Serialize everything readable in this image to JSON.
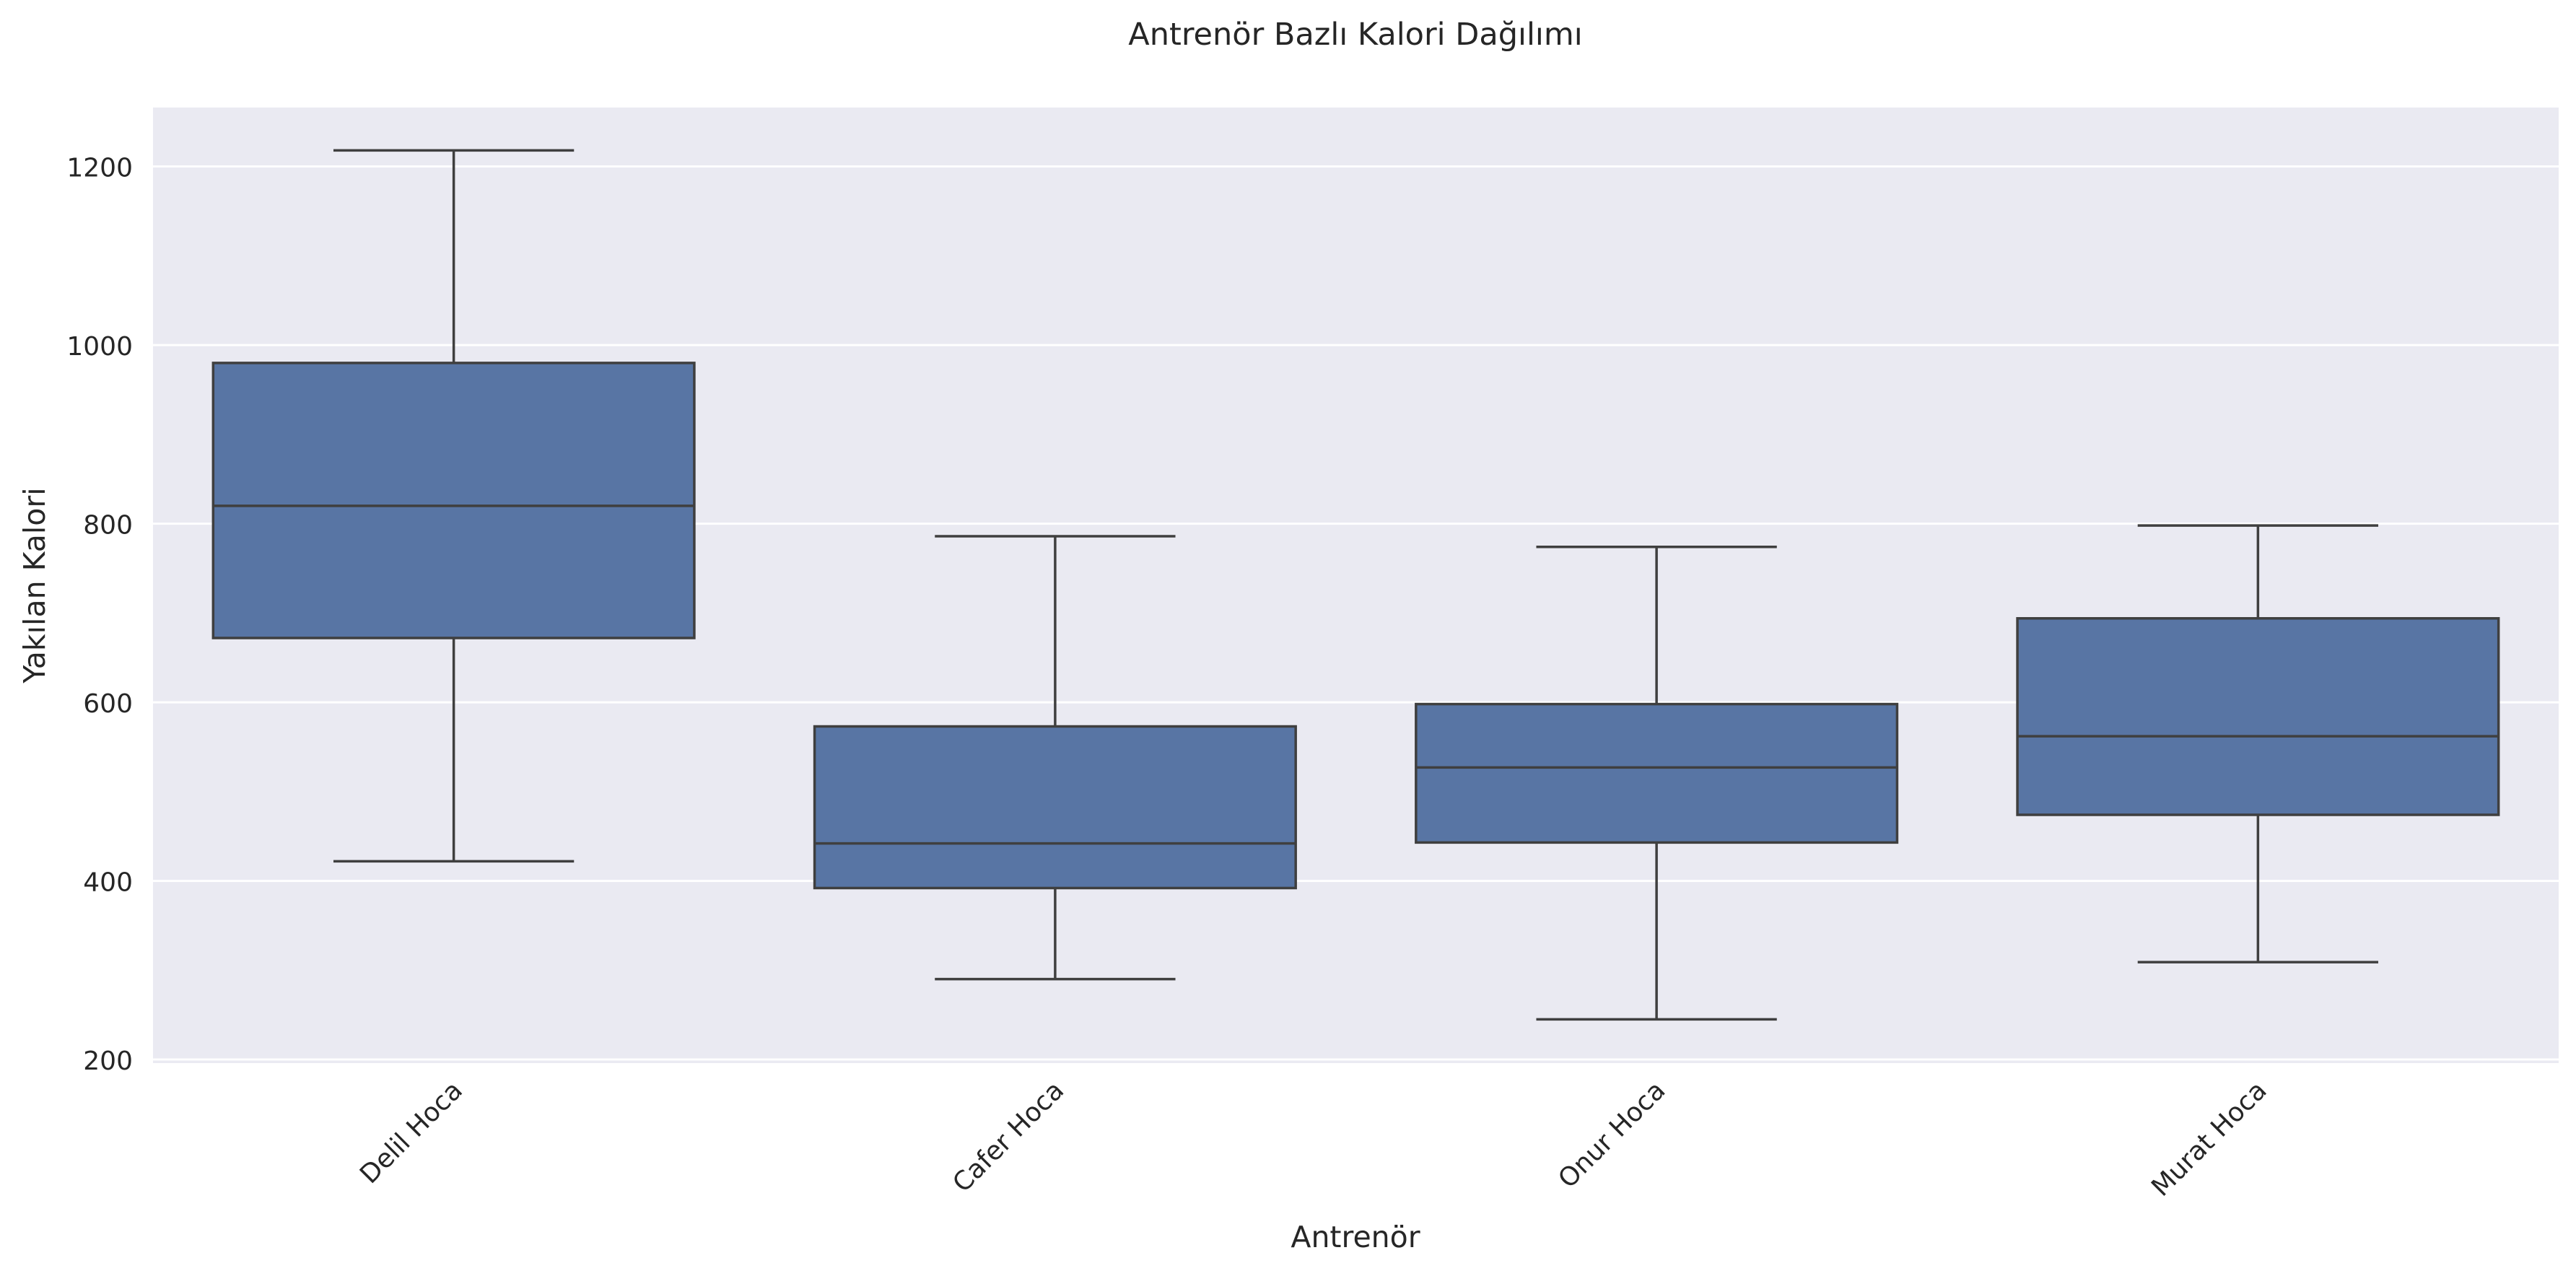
{
  "chart_data": {
    "type": "box",
    "title": "Antrenör Bazlı Kalori Dağılımı",
    "xlabel": "Antrenör",
    "ylabel": "Yakılan Kalori",
    "categories": [
      "Delil Hoca",
      "Cafer Hoca",
      "Onur Hoca",
      "Murat Hoca"
    ],
    "boxes": [
      {
        "category": "Delil Hoca",
        "whislo": 422,
        "q1": 672,
        "med": 820,
        "q3": 980,
        "whishi": 1218
      },
      {
        "category": "Cafer Hoca",
        "whislo": 290,
        "q1": 392,
        "med": 442,
        "q3": 573,
        "whishi": 786
      },
      {
        "category": "Onur Hoca",
        "whislo": 245,
        "q1": 443,
        "med": 527,
        "q3": 598,
        "whishi": 774
      },
      {
        "category": "Murat Hoca",
        "whislo": 309,
        "q1": 474,
        "med": 562,
        "q3": 694,
        "whishi": 798
      }
    ],
    "yticks": [
      200,
      400,
      600,
      800,
      1000,
      1200
    ],
    "ylim": [
      196,
      1266
    ],
    "grid": true,
    "colors": {
      "box": "#5875a4",
      "line": "#3f3f3f",
      "background": "#eaeaf2",
      "grid": "#ffffff"
    }
  }
}
